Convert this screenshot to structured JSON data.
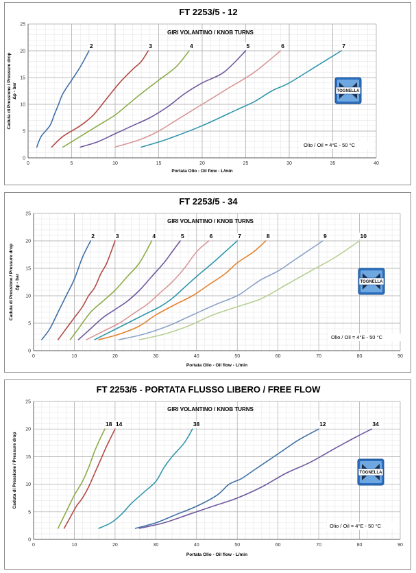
{
  "chart_data": [
    {
      "type": "line",
      "title": "FT 2253/5 - 12",
      "subtitle": "GIRI VOLANTINO / KNOB TURNS",
      "xlabel": "Portata Olio - Oil flow - L/min",
      "ylabel_lines": [
        "Caduta di Pressione / Pressure drop",
        "Δp - bar"
      ],
      "xlim": [
        0,
        40
      ],
      "ylim": [
        0,
        25
      ],
      "xticks": [
        0,
        5,
        10,
        15,
        20,
        25,
        30,
        35,
        40
      ],
      "yticks": [
        0,
        5,
        10,
        15,
        20,
        25
      ],
      "grid": true,
      "note": "Olio / Oil = 4°E - 50 °C",
      "logo_text": "TOGNELLA",
      "series": [
        {
          "name": "2",
          "color": "#3e6fa7",
          "points": [
            [
              1,
              2
            ],
            [
              1.5,
              4
            ],
            [
              2.5,
              6
            ],
            [
              3,
              8
            ],
            [
              3.5,
              10
            ],
            [
              4,
              12
            ],
            [
              5,
              14.5
            ],
            [
              6,
              17
            ],
            [
              7,
              20
            ]
          ]
        },
        {
          "name": "3",
          "color": "#b24843",
          "points": [
            [
              2.7,
              2
            ],
            [
              4,
              4
            ],
            [
              6,
              6
            ],
            [
              7.5,
              8
            ],
            [
              9,
              11
            ],
            [
              10.5,
              14
            ],
            [
              12,
              16.5
            ],
            [
              13,
              18
            ],
            [
              13.8,
              20
            ]
          ]
        },
        {
          "name": "4",
          "color": "#8bab45",
          "points": [
            [
              4,
              2
            ],
            [
              6,
              4
            ],
            [
              8,
              6
            ],
            [
              10,
              8
            ],
            [
              11.5,
              10
            ],
            [
              13,
              12
            ],
            [
              15,
              14.5
            ],
            [
              17,
              17
            ],
            [
              18.5,
              20
            ]
          ]
        },
        {
          "name": "5",
          "color": "#6d579c",
          "points": [
            [
              6,
              2
            ],
            [
              8,
              3
            ],
            [
              10,
              4.5
            ],
            [
              12,
              6
            ],
            [
              14,
              7.5
            ],
            [
              16,
              9.5
            ],
            [
              18,
              12
            ],
            [
              20,
              14
            ],
            [
              22.5,
              16
            ],
            [
              25,
              20
            ]
          ]
        },
        {
          "name": "6",
          "color": "#d89696",
          "points": [
            [
              10,
              2
            ],
            [
              13,
              3.5
            ],
            [
              15,
              5
            ],
            [
              17,
              7
            ],
            [
              19,
              9
            ],
            [
              21,
              11
            ],
            [
              23,
              13
            ],
            [
              26,
              16
            ],
            [
              29,
              20
            ]
          ]
        },
        {
          "name": "7",
          "color": "#2f96ab",
          "points": [
            [
              13,
              2
            ],
            [
              16,
              3.5
            ],
            [
              20,
              6
            ],
            [
              24,
              9
            ],
            [
              26,
              10.5
            ],
            [
              28,
              12.5
            ],
            [
              30,
              14
            ],
            [
              33,
              17
            ],
            [
              36,
              20
            ]
          ]
        }
      ]
    },
    {
      "type": "line",
      "title": "FT 2253/5 - 34",
      "subtitle": "GIRI VOLANTINO / KNOB TURNS",
      "xlabel": "Portata Olio - Oil flow - L/min",
      "ylabel_lines": [
        "Caduta di Pressione / Pressure drop",
        "Δp - bar"
      ],
      "xlim": [
        0,
        90
      ],
      "ylim": [
        0,
        25
      ],
      "xticks": [
        0,
        10,
        20,
        30,
        40,
        50,
        60,
        70,
        80,
        90
      ],
      "yticks": [
        0,
        5,
        10,
        15,
        20,
        25
      ],
      "grid": true,
      "note": "Olio / Oil = 4°E - 50 °C",
      "logo_text": "TOGNELLA",
      "series": [
        {
          "name": "2",
          "color": "#3e6fa7",
          "points": [
            [
              2,
              2
            ],
            [
              4,
              4
            ],
            [
              6,
              7
            ],
            [
              8,
              10
            ],
            [
              10,
              13
            ],
            [
              12,
              17
            ],
            [
              14,
              20
            ]
          ]
        },
        {
          "name": "3",
          "color": "#b24843",
          "points": [
            [
              6,
              2
            ],
            [
              8,
              4
            ],
            [
              10,
              6
            ],
            [
              12,
              8
            ],
            [
              13.5,
              10
            ],
            [
              15,
              11.5
            ],
            [
              16.5,
              14
            ],
            [
              18,
              16
            ],
            [
              20,
              20
            ]
          ]
        },
        {
          "name": "4",
          "color": "#8bab45",
          "points": [
            [
              9,
              2
            ],
            [
              11,
              4
            ],
            [
              14,
              7
            ],
            [
              17,
              9
            ],
            [
              20,
              11
            ],
            [
              23,
              13.5
            ],
            [
              26,
              16
            ],
            [
              29,
              20
            ]
          ]
        },
        {
          "name": "5",
          "color": "#6d579c",
          "points": [
            [
              11,
              2
            ],
            [
              14,
              4
            ],
            [
              17,
              6
            ],
            [
              20,
              7.5
            ],
            [
              23,
              9
            ],
            [
              26,
              11
            ],
            [
              29,
              13.5
            ],
            [
              32,
              16
            ],
            [
              34,
              18
            ],
            [
              36,
              20
            ]
          ]
        },
        {
          "name": "6",
          "color": "#d89696",
          "points": [
            [
              13,
              2
            ],
            [
              17,
              3.5
            ],
            [
              21,
              5
            ],
            [
              25,
              7
            ],
            [
              28,
              8.5
            ],
            [
              31,
              10.5
            ],
            [
              34,
              12.5
            ],
            [
              37,
              15
            ],
            [
              40,
              18
            ],
            [
              43,
              20
            ]
          ]
        },
        {
          "name": "7",
          "color": "#2f96ab",
          "points": [
            [
              15,
              2
            ],
            [
              19,
              3.5
            ],
            [
              23,
              5
            ],
            [
              27,
              6.5
            ],
            [
              31,
              8
            ],
            [
              34,
              9.5
            ],
            [
              37,
              11.5
            ],
            [
              40,
              13.5
            ],
            [
              44,
              16
            ],
            [
              47,
              18
            ],
            [
              50,
              20
            ]
          ]
        },
        {
          "name": "8",
          "color": "#e3812c",
          "points": [
            [
              16,
              2
            ],
            [
              21,
              3
            ],
            [
              26,
              4.5
            ],
            [
              30,
              6.5
            ],
            [
              35,
              8.5
            ],
            [
              39,
              10
            ],
            [
              43,
              12
            ],
            [
              47,
              14
            ],
            [
              50,
              16
            ],
            [
              54,
              18
            ],
            [
              57,
              20
            ]
          ]
        },
        {
          "name": "9",
          "color": "#8aa2c7",
          "points": [
            [
              21,
              2
            ],
            [
              27,
              3
            ],
            [
              33,
              4.5
            ],
            [
              39,
              6.5
            ],
            [
              45,
              8.5
            ],
            [
              50,
              10
            ],
            [
              53,
              11.5
            ],
            [
              56,
              13
            ],
            [
              60,
              14.5
            ],
            [
              64,
              16.5
            ],
            [
              68,
              18.5
            ],
            [
              71,
              20
            ]
          ]
        },
        {
          "name": "10",
          "color": "#b8cf93",
          "points": [
            [
              26,
              2
            ],
            [
              32,
              3
            ],
            [
              38,
              4.5
            ],
            [
              44,
              6.5
            ],
            [
              50,
              8
            ],
            [
              56,
              9.5
            ],
            [
              62,
              12
            ],
            [
              68,
              14.5
            ],
            [
              74,
              17
            ],
            [
              80,
              20
            ]
          ]
        }
      ]
    },
    {
      "type": "line",
      "title": "FT 2253/5 - PORTATA FLUSSO LIBERO / FREE FLOW",
      "subtitle": "GIRI VOLANTINO / KNOB TURNS",
      "xlabel": "Portata Olio - Oil flow - L/min",
      "ylabel_lines": [
        "Caduta di Pressione / Pressure drop"
      ],
      "xlim": [
        0,
        90
      ],
      "ylim": [
        0,
        25
      ],
      "xticks": [
        0,
        10,
        20,
        30,
        40,
        50,
        60,
        70,
        80,
        90
      ],
      "yticks": [
        0,
        5,
        10,
        15,
        20,
        25
      ],
      "grid": true,
      "note": "Olio / Oil = 4°E - 50 °C",
      "logo_text": "TOGNELLA",
      "series": [
        {
          "name": "18",
          "color": "#8bab45",
          "points": [
            [
              6,
              2
            ],
            [
              8,
              5
            ],
            [
              10,
              8
            ],
            [
              12,
              10.5
            ],
            [
              13.5,
              13
            ],
            [
              15,
              16
            ],
            [
              16.5,
              18.5
            ],
            [
              17.5,
              20
            ]
          ]
        },
        {
          "name": "14",
          "color": "#b24843",
          "points": [
            [
              7.5,
              2
            ],
            [
              9,
              4
            ],
            [
              10.5,
              6
            ],
            [
              12,
              7.5
            ],
            [
              13.5,
              9.5
            ],
            [
              15,
              12
            ],
            [
              16.5,
              14.5
            ],
            [
              18,
              17
            ],
            [
              20,
              20
            ]
          ]
        },
        {
          "name": "38",
          "color": "#2f96ab",
          "points": [
            [
              16,
              2
            ],
            [
              19,
              3
            ],
            [
              21.5,
              4.5
            ],
            [
              24,
              6.5
            ],
            [
              27,
              8.5
            ],
            [
              30,
              10.5
            ],
            [
              32,
              13
            ],
            [
              34,
              15
            ],
            [
              37,
              17.5
            ],
            [
              39,
              20
            ]
          ]
        },
        {
          "name": "12",
          "color": "#3e6fa7",
          "points": [
            [
              25,
              2
            ],
            [
              30,
              3
            ],
            [
              35,
              4.5
            ],
            [
              40,
              6
            ],
            [
              45,
              8
            ],
            [
              48,
              10
            ],
            [
              51,
              11
            ],
            [
              54,
              12.5
            ],
            [
              57,
              14
            ],
            [
              61,
              16
            ],
            [
              65,
              18
            ],
            [
              70,
              20
            ]
          ]
        },
        {
          "name": "34",
          "color": "#6d579c",
          "points": [
            [
              26,
              2
            ],
            [
              32,
              3
            ],
            [
              38,
              4.5
            ],
            [
              44,
              6
            ],
            [
              50,
              7.5
            ],
            [
              56,
              9.5
            ],
            [
              62,
              12
            ],
            [
              68,
              14
            ],
            [
              74,
              16.5
            ],
            [
              79,
              18.5
            ],
            [
              83,
              20
            ]
          ]
        }
      ]
    }
  ]
}
